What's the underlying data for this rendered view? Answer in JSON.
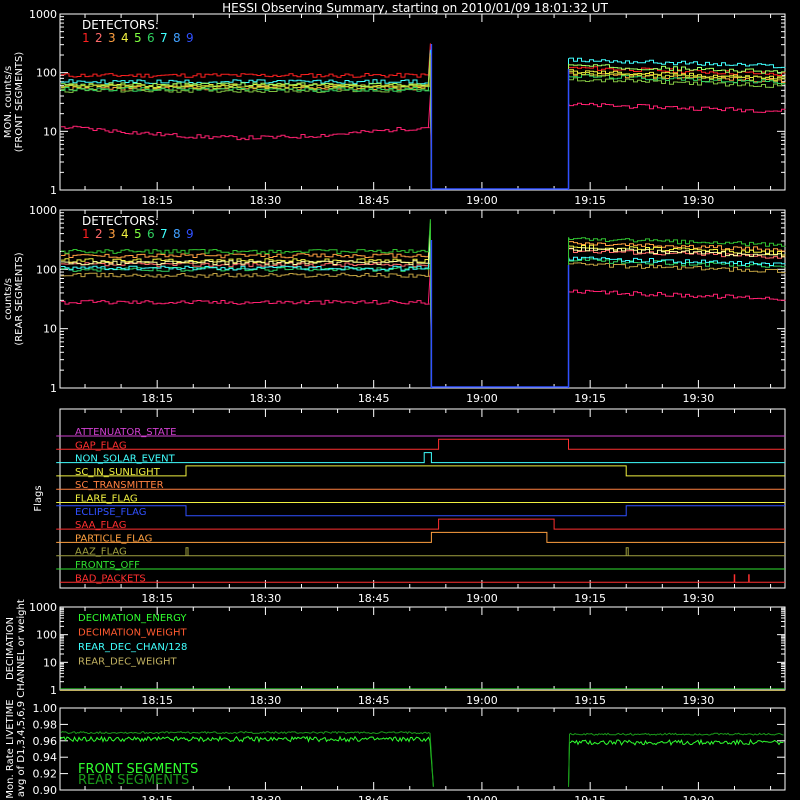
{
  "title": "HESSI Observing Summary, starting on 2010/01/09 18:01:32 UT",
  "colors": {
    "axis": "#ffffff",
    "det": [
      "#ff2020",
      "#ff6a6a",
      "#ffa040",
      "#f0f040",
      "#80ff40",
      "#30d060",
      "#40ffff",
      "#40a0ff",
      "#3050ff"
    ],
    "front_detectors": [
      "#ff2020",
      "#ff2070",
      "#ffa040",
      "#f0f040",
      "#80c040",
      "#30d060",
      "#40ffff",
      "#a0ff60",
      "#c0d030"
    ],
    "rear_detectors": [
      "#ff6a6a",
      "#ff2070",
      "#ffa040",
      "#f0f040",
      "#c0a040",
      "#30d060",
      "#40ffff",
      "#ffffa0",
      "#30c030"
    ]
  },
  "x_ticks": [
    "18:15",
    "18:30",
    "18:45",
    "19:00",
    "19:15",
    "19:30"
  ],
  "panel1": {
    "ylabel_line1": "MON. counts/s",
    "ylabel_line2": "(FRONT SEGMENTS)",
    "yticks": [
      "1",
      "10",
      "100",
      "1000"
    ],
    "legend_title": "DETECTORS:",
    "legend_digits": [
      "1",
      "2",
      "3",
      "4",
      "5",
      "6",
      "7",
      "8",
      "9"
    ]
  },
  "panel2": {
    "ylabel_line1": "counts/s",
    "ylabel_line2": "(REAR SEGMENTS)",
    "yticks": [
      "1",
      "10",
      "100",
      "1000"
    ],
    "legend_title": "DETECTORS:",
    "legend_digits": [
      "1",
      "2",
      "3",
      "4",
      "5",
      "6",
      "7",
      "8",
      "9"
    ]
  },
  "flags": {
    "ylabel": "Flags",
    "items": [
      {
        "label": "ATTENUATOR_STATE",
        "color": "#d040d0"
      },
      {
        "label": "GAP_FLAG",
        "color": "#ff3030"
      },
      {
        "label": "NON_SOLAR_EVENT",
        "color": "#40ffff"
      },
      {
        "label": "SC_IN_SUNLIGHT",
        "color": "#f0f040"
      },
      {
        "label": "SC_TRANSMITTER",
        "color": "#ff8040"
      },
      {
        "label": "FLARE_FLAG",
        "color": "#f0f040"
      },
      {
        "label": "ECLIPSE_FLAG",
        "color": "#3050ff"
      },
      {
        "label": "SAA_FLAG",
        "color": "#ff3030"
      },
      {
        "label": "PARTICLE_FLAG",
        "color": "#ffa040"
      },
      {
        "label": "AAZ_FLAG",
        "color": "#a0a040"
      },
      {
        "label": "FRONTS_OFF",
        "color": "#30e030"
      },
      {
        "label": "BAD_PACKETS",
        "color": "#ff3030"
      }
    ]
  },
  "decimation": {
    "ylabel_line1": "DECIMATION",
    "ylabel_line2": "CHANNEL or weight",
    "yticks": [
      "1",
      "10",
      "100",
      "1000"
    ],
    "legend": [
      {
        "label": "DECIMATION_ENERGY",
        "color": "#30ff30"
      },
      {
        "label": "DECIMATION_WEIGHT",
        "color": "#ff5a30"
      },
      {
        "label": "REAR_DEC_CHAN/128",
        "color": "#40ffff"
      },
      {
        "label": "REAR_DEC_WEIGHT",
        "color": "#c0b060"
      }
    ]
  },
  "livetime": {
    "ylabel_line1": "Mon. Rate LIVETIME",
    "ylabel_line2": "avg of D1,3,4,5,6,9",
    "yticks": [
      "0.90",
      "0.92",
      "0.94",
      "0.96",
      "0.98",
      "1.00"
    ],
    "legend": [
      {
        "label": "FRONT SEGMENTS",
        "color": "#30ff30"
      },
      {
        "label": "REAR SEGMENTS",
        "color": "#1a9a1a"
      }
    ]
  },
  "chart_data": [
    {
      "type": "line",
      "title": "HESSI Observing Summary, starting on 2010/01/09 18:01:32 UT",
      "ylabel": "MON. counts/s (FRONT SEGMENTS)",
      "yscale": "log",
      "ylim": [
        1,
        1000
      ],
      "xlim": [
        "18:01:32",
        "19:42"
      ],
      "data_gap": [
        "18:53",
        "19:12"
      ],
      "series": [
        {
          "name": "1",
          "before_gap": 90,
          "after_gap": 110
        },
        {
          "name": "2",
          "before_gap": 12,
          "after_gap": 26
        },
        {
          "name": "3",
          "before_gap": 55,
          "after_gap": 85
        },
        {
          "name": "4",
          "before_gap": 60,
          "after_gap": 95
        },
        {
          "name": "5",
          "before_gap": 50,
          "after_gap": 70
        },
        {
          "name": "6",
          "before_gap": 52,
          "after_gap": 80
        },
        {
          "name": "7",
          "before_gap": 70,
          "after_gap": 150
        },
        {
          "name": "8",
          "before_gap": 62,
          "after_gap": 120
        },
        {
          "name": "9",
          "before_gap": 58,
          "after_gap": 90
        }
      ]
    },
    {
      "type": "line",
      "ylabel": "counts/s (REAR SEGMENTS)",
      "yscale": "log",
      "ylim": [
        1,
        1000
      ],
      "data_gap": [
        "18:53",
        "19:12"
      ],
      "series": [
        {
          "name": "1",
          "before_gap": 120,
          "after_gap": 190
        },
        {
          "name": "2",
          "before_gap": 28,
          "after_gap": 38
        },
        {
          "name": "3",
          "before_gap": 170,
          "after_gap": 250
        },
        {
          "name": "4",
          "before_gap": 140,
          "after_gap": 220
        },
        {
          "name": "5",
          "before_gap": 80,
          "after_gap": 110
        },
        {
          "name": "6",
          "before_gap": 100,
          "after_gap": 130
        },
        {
          "name": "7",
          "before_gap": 105,
          "after_gap": 140
        },
        {
          "name": "8",
          "before_gap": 130,
          "after_gap": 200
        },
        {
          "name": "9",
          "before_gap": 200,
          "after_gap": 300
        }
      ]
    },
    {
      "type": "line",
      "ylabel": "Flags",
      "series": [
        {
          "name": "ATTENUATOR_STATE",
          "segments": [
            [
              "18:01",
              "19:42",
              0
            ]
          ]
        },
        {
          "name": "GAP_FLAG",
          "segments": [
            [
              "18:01",
              "18:54",
              0
            ],
            [
              "18:54",
              "19:12",
              1
            ],
            [
              "19:12",
              "19:42",
              0
            ]
          ]
        },
        {
          "name": "NON_SOLAR_EVENT",
          "segments": [
            [
              "18:01",
              "18:52",
              0
            ],
            [
              "18:52",
              "18:53",
              1
            ],
            [
              "18:53",
              "19:42",
              0
            ]
          ]
        },
        {
          "name": "SC_IN_SUNLIGHT",
          "segments": [
            [
              "18:01",
              "18:19",
              0
            ],
            [
              "18:19",
              "19:20",
              1
            ],
            [
              "19:20",
              "19:42",
              0
            ]
          ]
        },
        {
          "name": "SC_TRANSMITTER",
          "segments": [
            [
              "18:01",
              "19:42",
              0
            ]
          ]
        },
        {
          "name": "FLARE_FLAG",
          "segments": [
            [
              "18:01",
              "19:42",
              0
            ]
          ]
        },
        {
          "name": "ECLIPSE_FLAG",
          "segments": [
            [
              "18:01",
              "18:19",
              1
            ],
            [
              "18:19",
              "19:20",
              0
            ],
            [
              "19:20",
              "19:42",
              1
            ]
          ]
        },
        {
          "name": "SAA_FLAG",
          "segments": [
            [
              "18:01",
              "18:54",
              0
            ],
            [
              "18:54",
              "19:10",
              1
            ],
            [
              "19:10",
              "19:42",
              0
            ]
          ]
        },
        {
          "name": "PARTICLE_FLAG",
          "segments": [
            [
              "18:01",
              "18:53",
              0
            ],
            [
              "18:53",
              "19:09",
              1
            ],
            [
              "19:09",
              "19:42",
              0
            ]
          ]
        },
        {
          "name": "AAZ_FLAG",
          "segments": [
            [
              "18:01",
              "18:19",
              0
            ],
            [
              "18:19",
              "18:19",
              1
            ],
            [
              "19:20",
              "19:20",
              1
            ],
            [
              "19:20",
              "19:42",
              0
            ]
          ]
        },
        {
          "name": "FRONTS_OFF",
          "segments": [
            [
              "18:01",
              "19:42",
              0
            ]
          ]
        },
        {
          "name": "BAD_PACKETS",
          "spikes": [
            "19:35",
            "19:37"
          ]
        }
      ]
    },
    {
      "type": "line",
      "ylabel": "DECIMATION CHANNEL or weight",
      "yscale": "log",
      "ylim": [
        1,
        1000
      ],
      "series": [
        {
          "name": "DECIMATION_ENERGY",
          "value": 1
        },
        {
          "name": "DECIMATION_WEIGHT",
          "value": 1
        },
        {
          "name": "REAR_DEC_CHAN/128",
          "value": 1
        },
        {
          "name": "REAR_DEC_WEIGHT",
          "value": 1
        }
      ]
    },
    {
      "type": "line",
      "ylabel": "Mon. Rate LIVETIME avg of D1,3,4,5,6,9",
      "ylim": [
        0.9,
        1.0
      ],
      "data_gap": [
        "18:53",
        "19:12"
      ],
      "series": [
        {
          "name": "FRONT SEGMENTS",
          "before_gap": 0.962,
          "after_gap": 0.958
        },
        {
          "name": "REAR SEGMENTS",
          "before_gap": 0.97,
          "after_gap": 0.968
        }
      ]
    }
  ]
}
